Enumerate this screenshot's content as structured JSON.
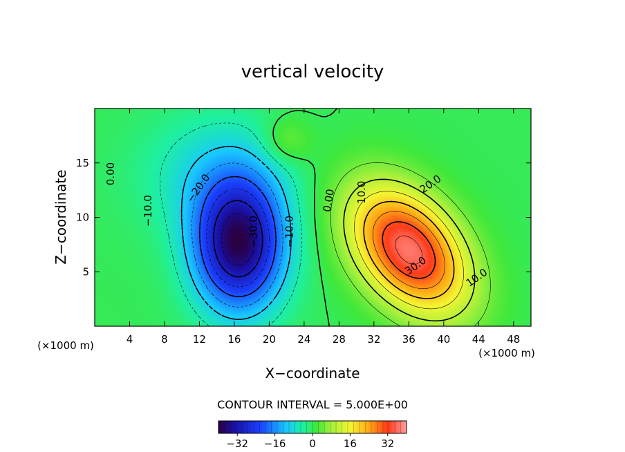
{
  "chart_data": {
    "type": "heatmap",
    "title": "vertical velocity",
    "xlabel": "X−coordinate",
    "ylabel": "Z−coordinate",
    "x_unit_left": "(×1000 m)",
    "x_unit_right": "(×1000 m)",
    "xlim": [
      0,
      50
    ],
    "ylim": [
      0,
      20
    ],
    "x_ticks": [
      4,
      8,
      12,
      16,
      20,
      24,
      28,
      32,
      36,
      40,
      44,
      48
    ],
    "y_ticks": [
      5,
      10,
      15
    ],
    "contour_interval_text": "CONTOUR INTERVAL = 5.000E+00",
    "colorbar": {
      "min": -40,
      "max": 40,
      "ticks": [
        -32,
        -16,
        0,
        16,
        32
      ],
      "tick_labels": [
        "−32",
        "−16",
        "0",
        "16",
        "32"
      ]
    },
    "features": [
      {
        "kind": "downdraft",
        "center_x": 16.5,
        "center_z": 7.5,
        "peak": -38
      },
      {
        "kind": "updraft",
        "center_x": 36.0,
        "center_z": 7.0,
        "peak": 37
      }
    ],
    "contour_labels": [
      {
        "text": "0.00",
        "x": 2.2,
        "z": 14.0,
        "rotate": -90
      },
      {
        "text": "−10.0",
        "x": 6.5,
        "z": 10.6,
        "rotate": -90
      },
      {
        "text": "−20.0",
        "x": 12.2,
        "z": 12.5,
        "rotate": -55
      },
      {
        "text": "−30.0",
        "x": 18.6,
        "z": 8.7,
        "rotate": -90
      },
      {
        "text": "−10.0",
        "x": 22.7,
        "z": 8.7,
        "rotate": -90
      },
      {
        "text": "0.00",
        "x": 27.2,
        "z": 11.5,
        "rotate": -80
      },
      {
        "text": "10.0",
        "x": 31.0,
        "z": 12.3,
        "rotate": -90
      },
      {
        "text": "20.0",
        "x": 38.7,
        "z": 12.8,
        "rotate": -35
      },
      {
        "text": "30.0",
        "x": 37.0,
        "z": 5.3,
        "rotate": -35
      },
      {
        "text": "10.0",
        "x": 44.0,
        "z": 4.2,
        "rotate": -35
      }
    ]
  }
}
